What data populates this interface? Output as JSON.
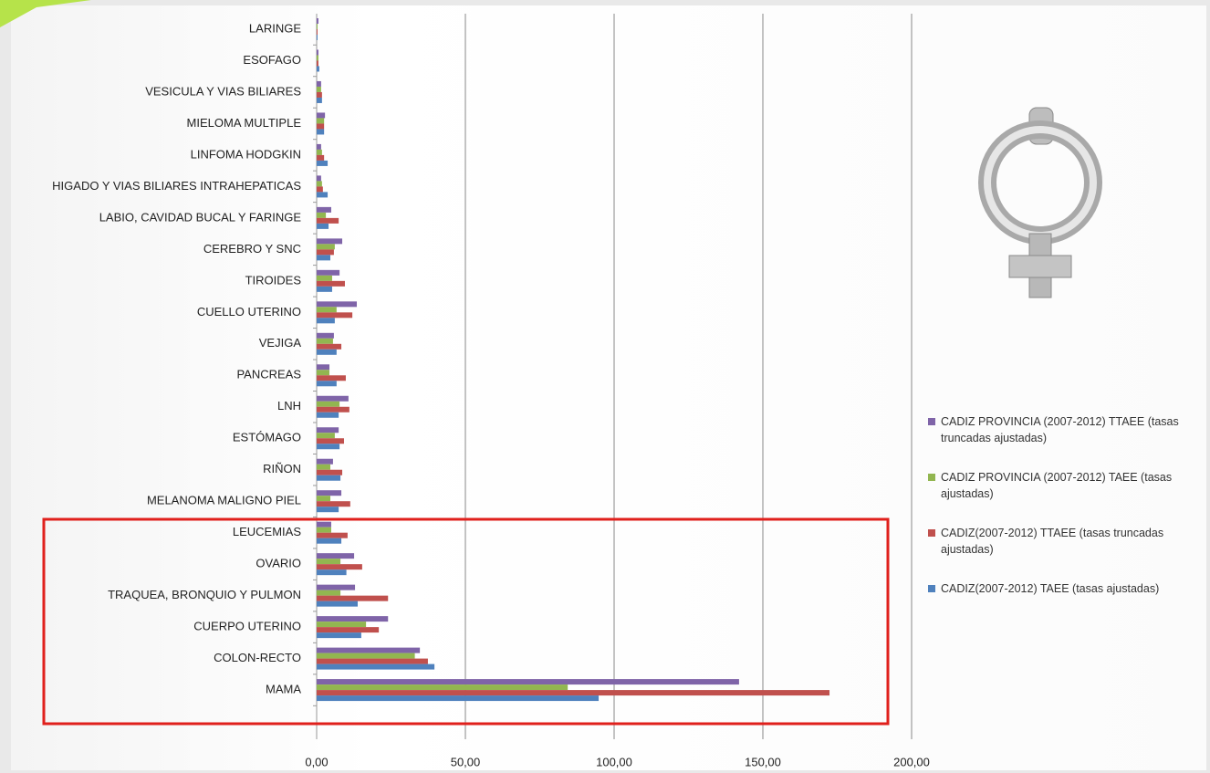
{
  "chart_data": {
    "type": "bar",
    "orientation": "horizontal",
    "categories": [
      "LARINGE",
      "ESOFAGO",
      "VESICULA Y VIAS BILIARES",
      "MIELOMA MULTIPLE",
      "LINFOMA HODGKIN",
      "HIGADO Y VIAS BILIARES INTRAHEPATICAS",
      "LABIO, CAVIDAD BUCAL Y FARINGE",
      "CEREBRO Y SNC",
      "TIROIDES",
      "CUELLO UTERINO",
      "VEJIGA",
      "PANCREAS",
      "LNH",
      "ESTÓMAGO",
      "RIÑON",
      "MELANOMA MALIGNO PIEL",
      "LEUCEMIAS",
      "OVARIO",
      "TRAQUEA, BRONQUIO Y PULMON",
      "CUERPO UTERINO",
      "COLON-RECTO",
      "MAMA"
    ],
    "series": [
      {
        "name": "CADIZ PROVINCIA (2007-2012) TTAEE (tasas truncadas ajustadas)",
        "color": "#7f64a8",
        "values": [
          0.6,
          0.6,
          1.5,
          2.8,
          1.5,
          1.5,
          4.9,
          8.6,
          7.7,
          13.5,
          5.8,
          4.3,
          10.7,
          7.4,
          5.5,
          8.3,
          4.9,
          12.6,
          12.9,
          24,
          34.7,
          142
        ]
      },
      {
        "name": "CADIZ PROVINCIA (2007-2012) TAEE (tasas ajustadas)",
        "color": "#92b650",
        "values": [
          0.3,
          0.6,
          1.5,
          2.5,
          1.8,
          1.8,
          3.1,
          6.1,
          5.2,
          6.7,
          5.5,
          4.3,
          7.7,
          6.1,
          4.6,
          4.6,
          4.9,
          8,
          8,
          16.6,
          33,
          84.4
        ]
      },
      {
        "name": "CADIZ(2007-2012) TTAEE (tasas truncadas ajustadas)",
        "color": "#c0504d",
        "values": [
          0.3,
          0.6,
          1.8,
          2.5,
          2.5,
          2.1,
          7.4,
          5.8,
          9.5,
          12,
          8.3,
          9.8,
          11,
          9.2,
          8.6,
          11.3,
          10.4,
          15.3,
          24,
          20.9,
          37.4,
          172.4
        ]
      },
      {
        "name": "CADIZ(2007-2012) TAEE (tasas ajustadas)",
        "color": "#4f81bd",
        "values": [
          0.3,
          0.9,
          1.8,
          2.5,
          3.7,
          3.7,
          4,
          4.6,
          5.2,
          6.1,
          6.7,
          6.7,
          7.4,
          7.7,
          8,
          7.4,
          8.3,
          10,
          13.8,
          15,
          39.6,
          94.8
        ]
      }
    ],
    "xlim": [
      0,
      200
    ],
    "xticks": [
      {
        "value": 0,
        "label": "0,00"
      },
      {
        "value": 50,
        "label": "50,00"
      },
      {
        "value": 100,
        "label": "100,00"
      },
      {
        "value": 150,
        "label": "150,00"
      },
      {
        "value": 200,
        "label": "200,00"
      }
    ],
    "grid": true
  }
}
